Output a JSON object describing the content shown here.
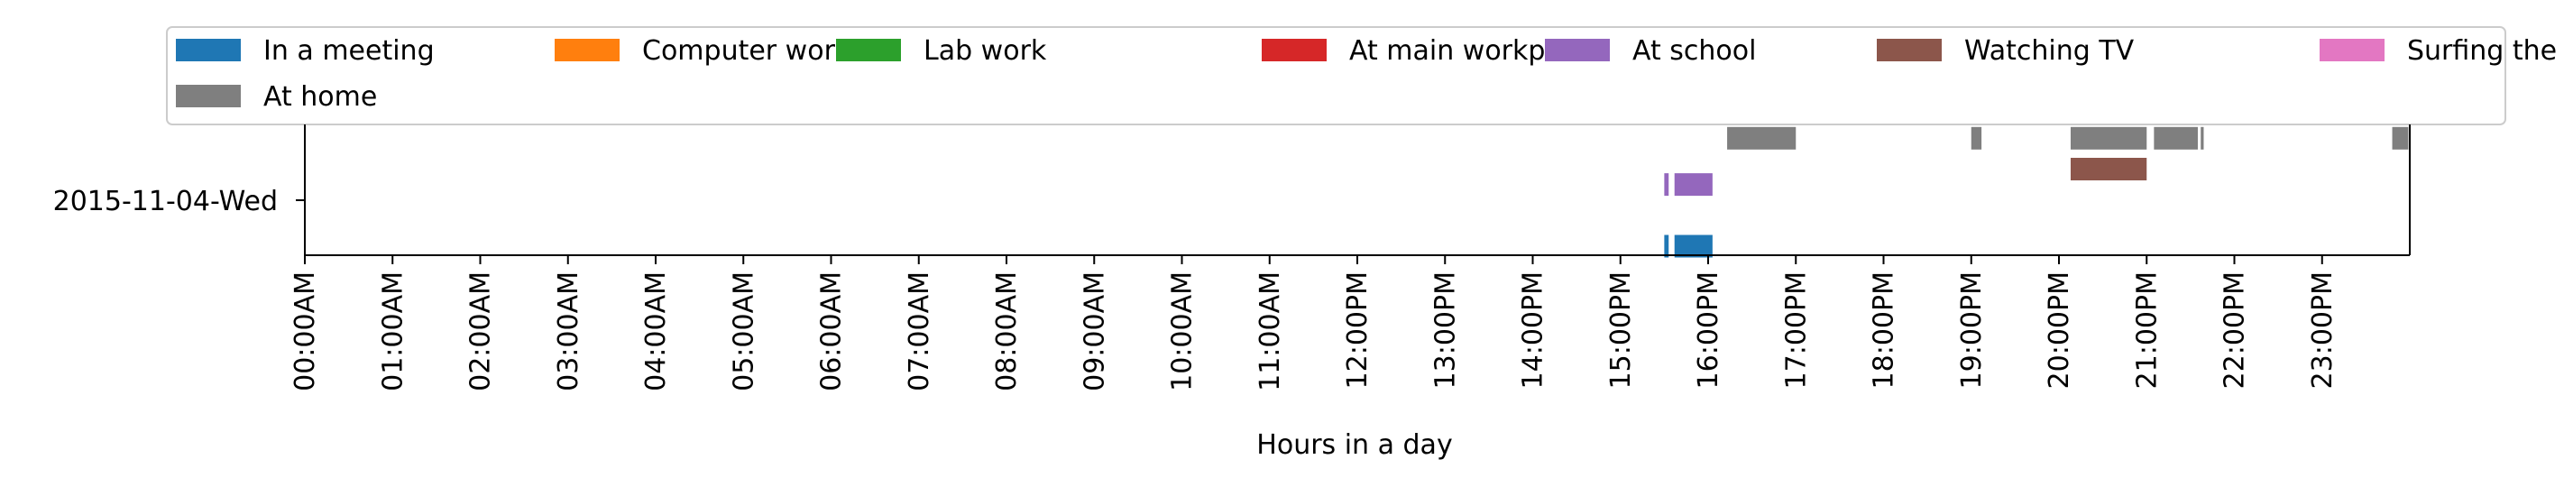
{
  "chart_data": {
    "type": "timeline",
    "xlabel": "Hours in a day",
    "ylabel": "",
    "x_range_hours": [
      0,
      24
    ],
    "x_tick_labels": [
      "00:00AM",
      "01:00AM",
      "02:00AM",
      "03:00AM",
      "04:00AM",
      "05:00AM",
      "06:00AM",
      "07:00AM",
      "08:00AM",
      "09:00AM",
      "10:00AM",
      "11:00AM",
      "12:00PM",
      "13:00PM",
      "14:00PM",
      "15:00PM",
      "16:00PM",
      "17:00PM",
      "18:00PM",
      "19:00PM",
      "20:00PM",
      "21:00PM",
      "22:00PM",
      "23:00PM"
    ],
    "categories": [
      "2015-11-04-Wed"
    ],
    "legend_position": "top",
    "series": [
      {
        "name": "In a meeting",
        "color": "#1f77b4",
        "lane": 0,
        "intervals": [
          [
            "15:30",
            "15:33"
          ],
          [
            "15:37",
            "16:03"
          ]
        ]
      },
      {
        "name": "Computer work",
        "color": "#ff7f0e",
        "lane": 1,
        "intervals": []
      },
      {
        "name": "Lab work",
        "color": "#2ca02c",
        "lane": 2,
        "intervals": []
      },
      {
        "name": "At main workplace",
        "color": "#d62728",
        "lane": 3,
        "intervals": []
      },
      {
        "name": "At school",
        "color": "#9467bd",
        "lane": 4,
        "intervals": [
          [
            "15:30",
            "15:33"
          ],
          [
            "15:37",
            "16:03"
          ]
        ]
      },
      {
        "name": "Watching TV",
        "color": "#8c564b",
        "lane": 5,
        "intervals": [
          [
            "20:08",
            "21:00"
          ]
        ]
      },
      {
        "name": "Surfing the internet",
        "color": "#e377c2",
        "lane": 6,
        "intervals": []
      },
      {
        "name": "At home",
        "color": "#7f7f7f",
        "lane": 7,
        "intervals": [
          [
            "16:13",
            "17:00"
          ],
          [
            "19:00",
            "19:07"
          ],
          [
            "20:08",
            "21:00"
          ],
          [
            "21:05",
            "21:35"
          ],
          [
            "21:37",
            "21:39"
          ],
          [
            "23:48",
            "23:59"
          ]
        ]
      }
    ]
  }
}
